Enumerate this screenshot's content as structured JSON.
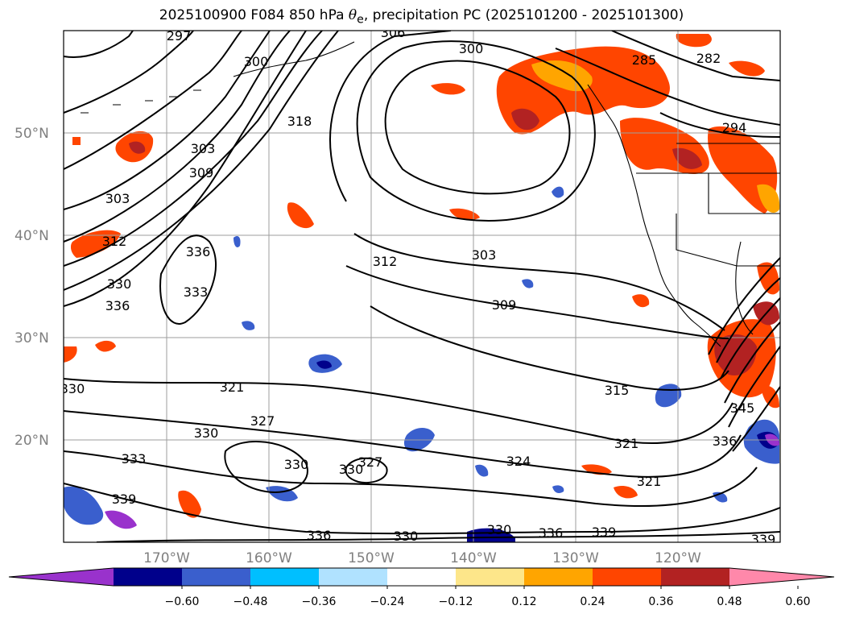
{
  "title": {
    "prefix": "2025100900 F084 850 hPa ",
    "symbol": "θ",
    "subscript": "e",
    "suffix": ", precipitation PC (2025101200 - 2025101300)"
  },
  "map": {
    "lat_ticks": [
      {
        "lat": 50,
        "label": "50°N"
      },
      {
        "lat": 40,
        "label": "40°N"
      },
      {
        "lat": 30,
        "label": "30°N"
      },
      {
        "lat": 20,
        "label": "20°N"
      }
    ],
    "lon_ticks": [
      {
        "lon": -170,
        "label": "170°W"
      },
      {
        "lon": -160,
        "label": "160°W"
      },
      {
        "lon": -150,
        "label": "150°W"
      },
      {
        "lon": -140,
        "label": "140°W"
      },
      {
        "lon": -130,
        "label": "130°W"
      },
      {
        "lon": -120,
        "label": "120°W"
      }
    ],
    "extent": {
      "lon_min": -180,
      "lon_max": -110,
      "lat_min": 10,
      "lat_max": 60
    },
    "field": "850 hPa theta-e (K)",
    "contour_labels": [
      "297",
      "300",
      "300",
      "303",
      "306",
      "303",
      "309",
      "312",
      "318",
      "303",
      "309",
      "312",
      "336",
      "330",
      "336",
      "333",
      "315",
      "321",
      "321",
      "321",
      "327",
      "330",
      "324",
      "327",
      "330",
      "333",
      "339",
      "336",
      "330",
      "330",
      "336",
      "339",
      "330",
      "345",
      "336",
      "285",
      "282",
      "294",
      "330",
      "339"
    ]
  },
  "colorbar": {
    "ticks": [
      "−0.60",
      "−0.48",
      "−0.36",
      "−0.24",
      "−0.12",
      "0.12",
      "0.24",
      "0.36",
      "0.48",
      "0.60"
    ],
    "colors": [
      "#9932cc",
      "#00008b",
      "#3a5fcd",
      "#00bfff",
      "#b0e2ff",
      "#ffffff",
      "#fde68a",
      "#ffa500",
      "#ff4500",
      "#b22222",
      "#ff88aa"
    ],
    "extend": "both"
  }
}
